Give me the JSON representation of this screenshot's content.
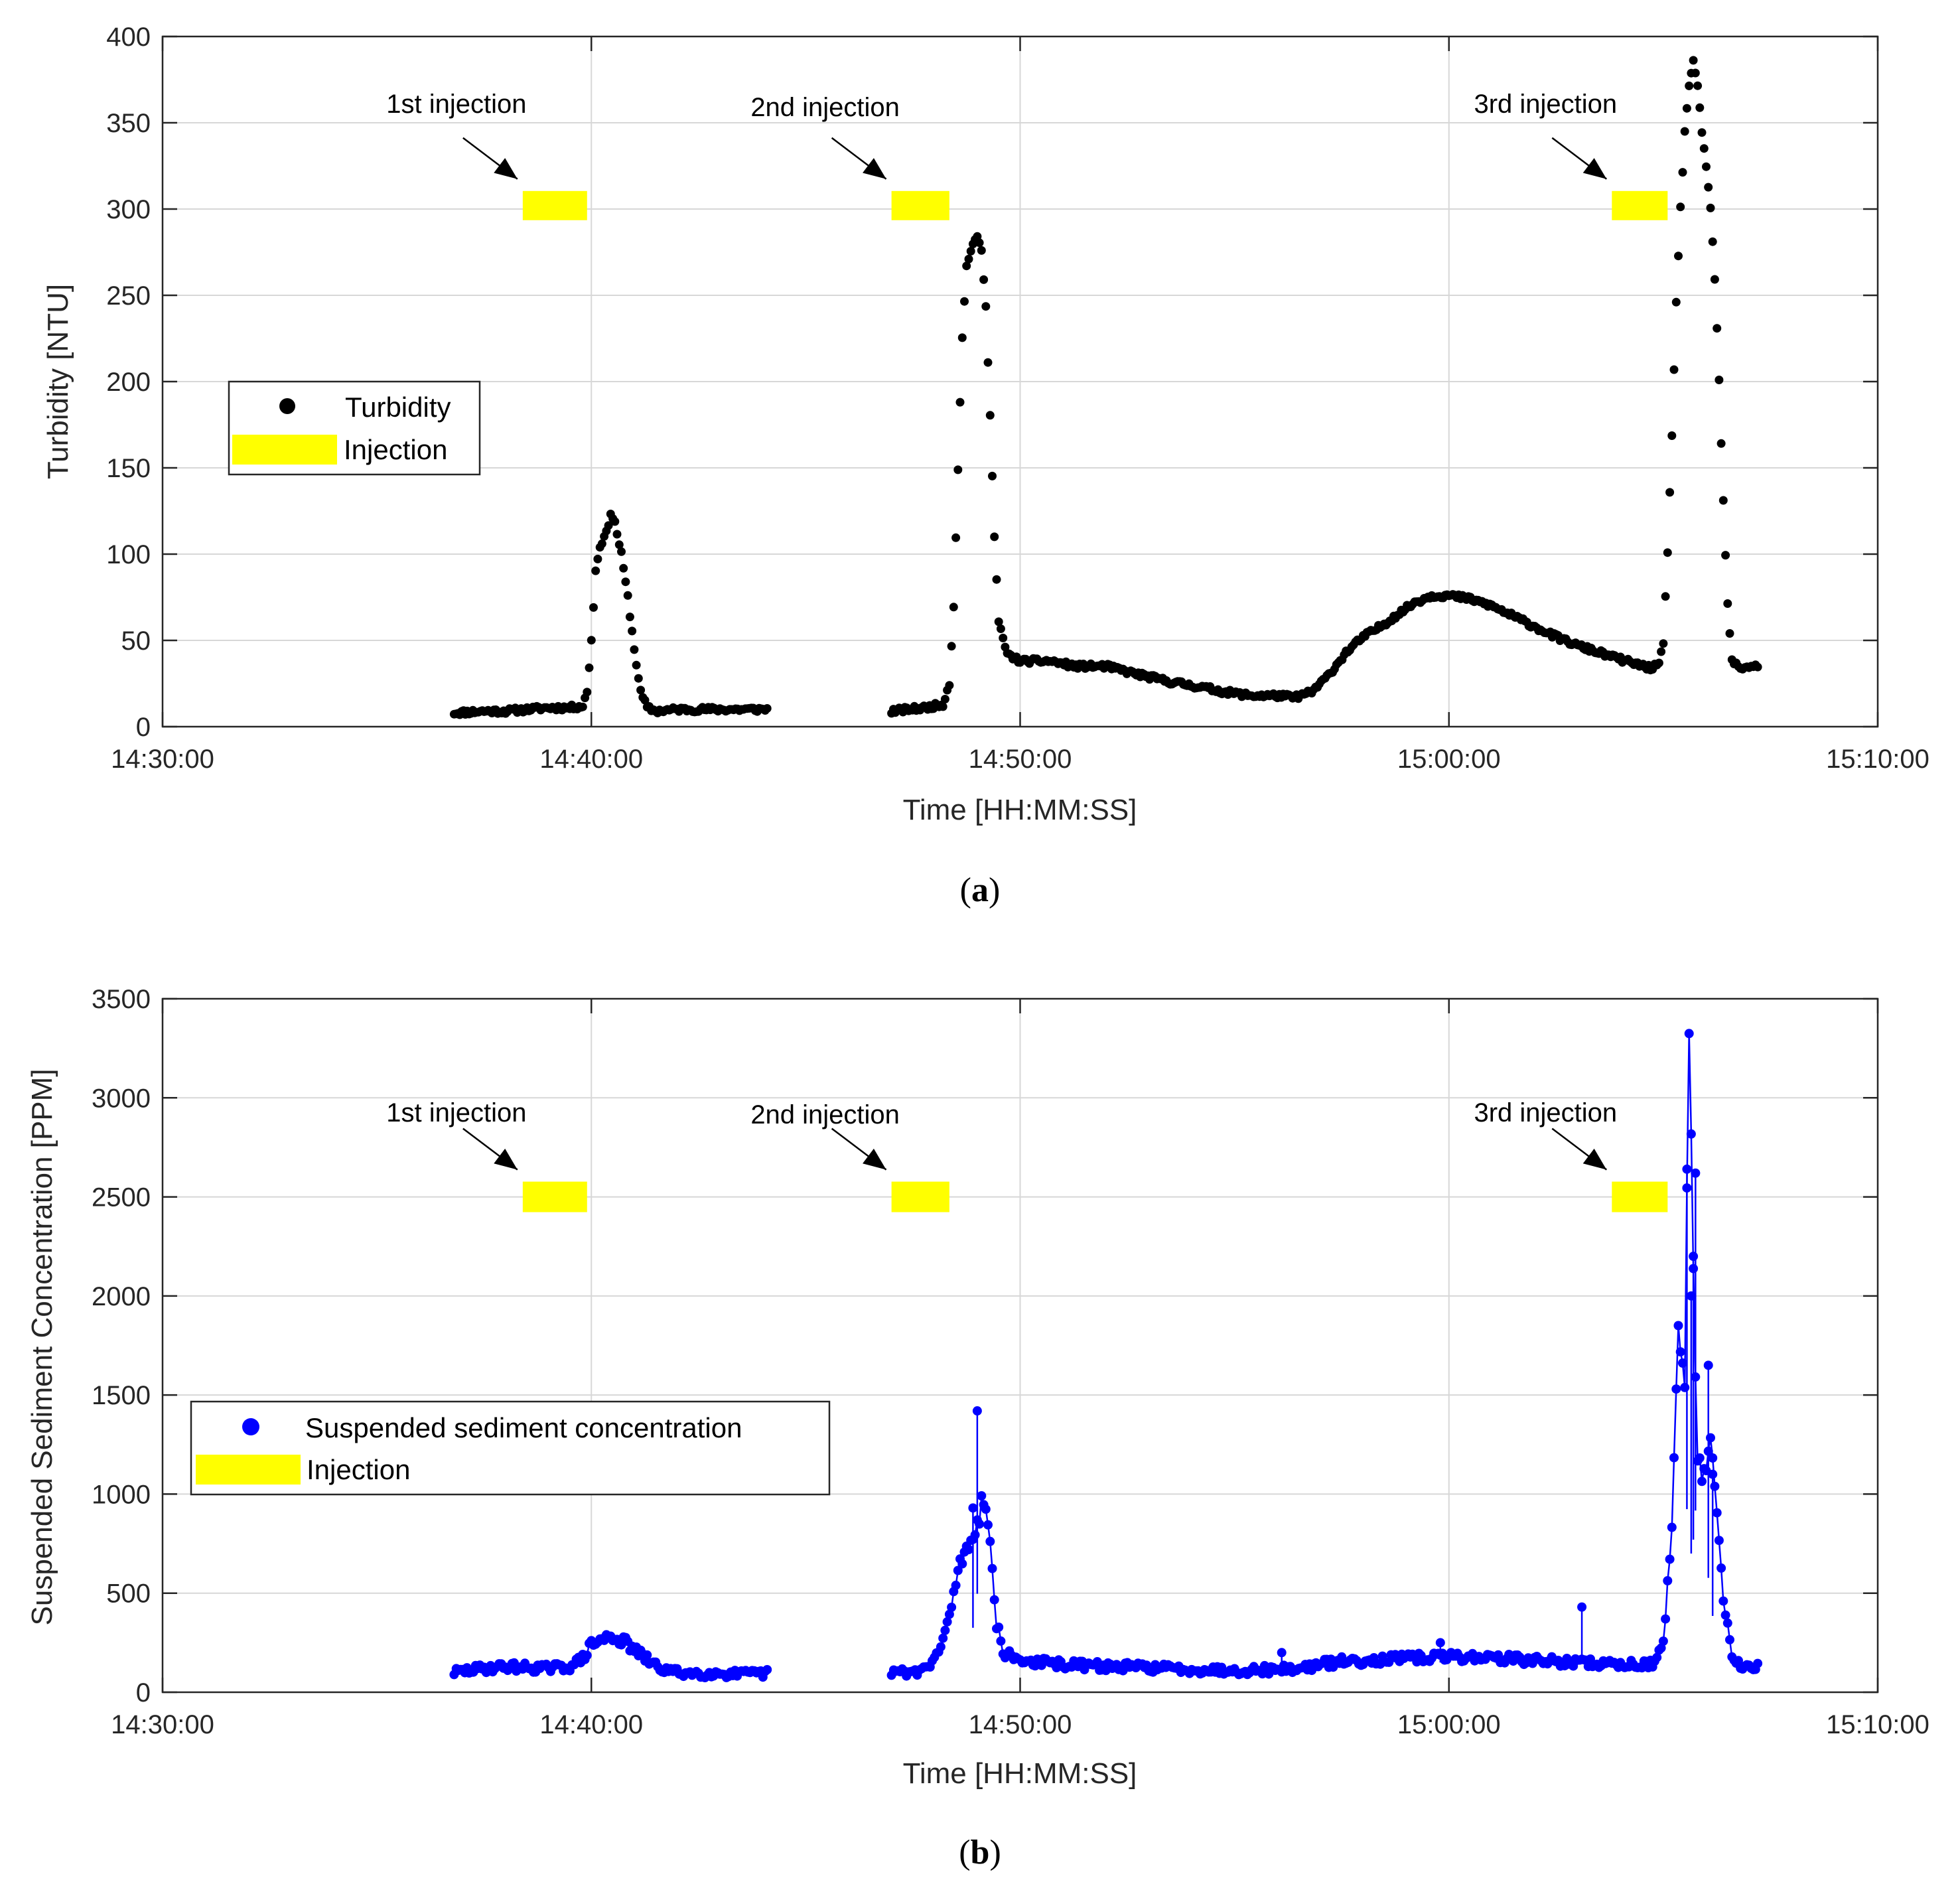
{
  "chart_data": [
    {
      "id": "a",
      "type": "scatter",
      "panel_label": "a",
      "xlabel": "Time [HH:MM:SS]",
      "ylabel": "Turbidity [NTU]",
      "xlim_minutes": [
        0,
        40
      ],
      "ylim": [
        0,
        400
      ],
      "x_ticks": [
        "14:30:00",
        "14:40:00",
        "14:50:00",
        "15:00:00",
        "15:10:00"
      ],
      "x_tick_values": [
        0,
        10,
        20,
        30,
        40
      ],
      "y_ticks": [
        0,
        50,
        100,
        150,
        200,
        250,
        300,
        350,
        400
      ],
      "grid": true,
      "x_unit": "minutes after 14:30:00",
      "legend": {
        "location": "middle-left",
        "entries": [
          "Turbidity",
          "Injection"
        ]
      },
      "series": [
        {
          "name": "Turbidity",
          "color": "#000000",
          "marker": "dot",
          "line": false,
          "profile": [
            [
              6.8,
              8
            ],
            [
              7.5,
              9
            ],
            [
              8.0,
              9
            ],
            [
              8.5,
              10
            ],
            [
              9.0,
              11
            ],
            [
              9.5,
              11
            ],
            [
              9.8,
              12
            ],
            [
              9.9,
              20
            ],
            [
              10.0,
              50
            ],
            [
              10.1,
              90
            ],
            [
              10.2,
              105
            ],
            [
              10.35,
              112
            ],
            [
              10.45,
              124
            ],
            [
              10.55,
              118
            ],
            [
              10.7,
              100
            ],
            [
              10.85,
              75
            ],
            [
              11.0,
              45
            ],
            [
              11.15,
              20
            ],
            [
              11.3,
              11
            ],
            [
              11.5,
              9
            ],
            [
              12.0,
              10
            ],
            [
              12.5,
              10
            ],
            [
              13.0,
              10
            ],
            [
              13.5,
              10
            ],
            [
              14.1,
              10
            ],
            [
              null,
              null
            ],
            [
              17.0,
              9
            ],
            [
              17.4,
              10
            ],
            [
              17.8,
              11
            ],
            [
              18.2,
              13
            ],
            [
              18.35,
              25
            ],
            [
              18.45,
              70
            ],
            [
              18.55,
              150
            ],
            [
              18.65,
              225
            ],
            [
              18.75,
              268
            ],
            [
              18.85,
              275
            ],
            [
              19.0,
              285
            ],
            [
              19.1,
              275
            ],
            [
              19.2,
              245
            ],
            [
              19.3,
              180
            ],
            [
              19.4,
              110
            ],
            [
              19.5,
              60
            ],
            [
              19.7,
              42
            ],
            [
              20.0,
              38
            ],
            [
              20.7,
              38
            ],
            [
              21.3,
              35
            ],
            [
              22.0,
              35
            ],
            [
              22.8,
              30
            ],
            [
              23.5,
              26
            ],
            [
              24.2,
              23
            ],
            [
              24.8,
              20
            ],
            [
              25.4,
              18
            ],
            [
              26.0,
              18
            ],
            [
              26.4,
              17
            ],
            [
              26.8,
              20
            ],
            [
              27.2,
              30
            ],
            [
              27.6,
              43
            ],
            [
              28.0,
              52
            ],
            [
              28.4,
              58
            ],
            [
              28.8,
              65
            ],
            [
              29.2,
              72
            ],
            [
              29.6,
              76
            ],
            [
              30.0,
              76
            ],
            [
              30.5,
              74
            ],
            [
              31.0,
              70
            ],
            [
              31.5,
              64
            ],
            [
              32.0,
              58
            ],
            [
              32.5,
              52
            ],
            [
              33.0,
              47
            ],
            [
              33.5,
              43
            ],
            [
              34.0,
              39
            ],
            [
              34.4,
              36
            ],
            [
              34.7,
              34
            ],
            [
              34.9,
              36
            ],
            [
              35.0,
              48
            ],
            [
              35.1,
              100
            ],
            [
              35.2,
              170
            ],
            [
              35.3,
              245
            ],
            [
              35.4,
              300
            ],
            [
              35.5,
              345
            ],
            [
              35.6,
              372
            ],
            [
              35.7,
              385
            ],
            [
              35.8,
              370
            ],
            [
              35.9,
              345
            ],
            [
              36.0,
              325
            ],
            [
              36.1,
              300
            ],
            [
              36.2,
              260
            ],
            [
              36.3,
              200
            ],
            [
              36.4,
              130
            ],
            [
              36.5,
              70
            ],
            [
              36.6,
              38
            ],
            [
              36.8,
              34
            ],
            [
              37.0,
              35
            ],
            [
              37.2,
              35
            ]
          ]
        }
      ],
      "injections": [
        {
          "label": "1st injection",
          "start": 8.4,
          "end": 9.9,
          "y_center": 302
        },
        {
          "label": "2nd injection",
          "start": 17.0,
          "end": 18.35,
          "y_center": 302
        },
        {
          "label": "3rd injection",
          "start": 33.8,
          "end": 35.1,
          "y_center": 302
        }
      ]
    },
    {
      "id": "b",
      "type": "line",
      "panel_label": "b",
      "xlabel": "Time [HH:MM:SS]",
      "ylabel": "Suspended Sediment Concentration [PPM]",
      "xlim_minutes": [
        0,
        40
      ],
      "ylim": [
        0,
        3500
      ],
      "x_ticks": [
        "14:30:00",
        "14:40:00",
        "14:50:00",
        "15:00:00",
        "15:10:00"
      ],
      "x_tick_values": [
        0,
        10,
        20,
        30,
        40
      ],
      "y_ticks": [
        0,
        500,
        1000,
        1500,
        2000,
        2500,
        3000,
        3500
      ],
      "grid": true,
      "x_unit": "minutes after 14:30:00",
      "legend": {
        "location": "middle-left",
        "entries": [
          "Suspended sediment concentration",
          "Injection"
        ]
      },
      "series": [
        {
          "name": "Suspended sediment concentration",
          "color": "#0000ff",
          "marker": "dot",
          "line": true,
          "profile": [
            [
              6.8,
              100
            ],
            [
              7.5,
              120
            ],
            [
              8.0,
              130
            ],
            [
              8.5,
              125
            ],
            [
              9.0,
              120
            ],
            [
              9.5,
              130
            ],
            [
              9.8,
              170
            ],
            [
              10.0,
              240
            ],
            [
              10.3,
              270
            ],
            [
              10.5,
              280
            ],
            [
              10.8,
              250
            ],
            [
              11.2,
              180
            ],
            [
              11.6,
              120
            ],
            [
              12.0,
              100
            ],
            [
              12.5,
              95
            ],
            [
              13.0,
              95
            ],
            [
              13.5,
              90
            ],
            [
              14.1,
              95
            ],
            [
              null,
              null
            ],
            [
              17.0,
              100
            ],
            [
              17.5,
              100
            ],
            [
              17.9,
              130
            ],
            [
              18.2,
              250
            ],
            [
              18.4,
              450
            ],
            [
              18.6,
              650
            ],
            [
              18.8,
              750
            ],
            [
              19.0,
              850
            ],
            [
              19.15,
              1000
            ],
            [
              19.3,
              750
            ],
            [
              19.45,
              350
            ],
            [
              19.6,
              200
            ],
            [
              20.0,
              160
            ],
            [
              21.0,
              140
            ],
            [
              22.0,
              130
            ],
            [
              23.0,
              125
            ],
            [
              24.0,
              115
            ],
            [
              25.0,
              110
            ],
            [
              26.0,
              115
            ],
            [
              26.5,
              120
            ],
            [
              27.0,
              140
            ],
            [
              27.5,
              155
            ],
            [
              28.0,
              160
            ],
            [
              28.5,
              165
            ],
            [
              29.0,
              170
            ],
            [
              29.5,
              175
            ],
            [
              30.0,
              180
            ],
            [
              31.0,
              175
            ],
            [
              32.0,
              160
            ],
            [
              33.0,
              150
            ],
            [
              34.0,
              140
            ],
            [
              34.8,
              145
            ],
            [
              35.0,
              250
            ],
            [
              35.2,
              800
            ],
            [
              35.35,
              1800
            ],
            [
              35.5,
              1500
            ],
            [
              35.6,
              3450
            ],
            [
              35.7,
              2100
            ],
            [
              35.8,
              1150
            ],
            [
              35.95,
              1100
            ],
            [
              36.1,
              1300
            ],
            [
              36.25,
              900
            ],
            [
              36.4,
              450
            ],
            [
              36.6,
              200
            ],
            [
              36.8,
              140
            ],
            [
              37.0,
              135
            ],
            [
              37.2,
              135
            ]
          ],
          "spikes": [
            [
              19.0,
              1420
            ],
            [
              18.9,
              930
            ],
            [
              35.55,
              2640
            ],
            [
              35.75,
              2620
            ],
            [
              35.7,
              2200
            ],
            [
              35.65,
              2000
            ],
            [
              36.05,
              1650
            ],
            [
              36.15,
              1100
            ],
            [
              33.1,
              430
            ],
            [
              29.8,
              250
            ],
            [
              26.1,
              200
            ]
          ]
        }
      ],
      "injections": [
        {
          "label": "1st injection",
          "start": 8.4,
          "end": 9.9,
          "y_center": 2500
        },
        {
          "label": "2nd injection",
          "start": 17.0,
          "end": 18.35,
          "y_center": 2500
        },
        {
          "label": "3rd injection",
          "start": 33.8,
          "end": 35.1,
          "y_center": 2500
        }
      ]
    }
  ],
  "colors": {
    "injection": "#ffff00",
    "turbidity": "#000000",
    "ssc": "#0000ff",
    "grid": "#d7d7d7"
  }
}
